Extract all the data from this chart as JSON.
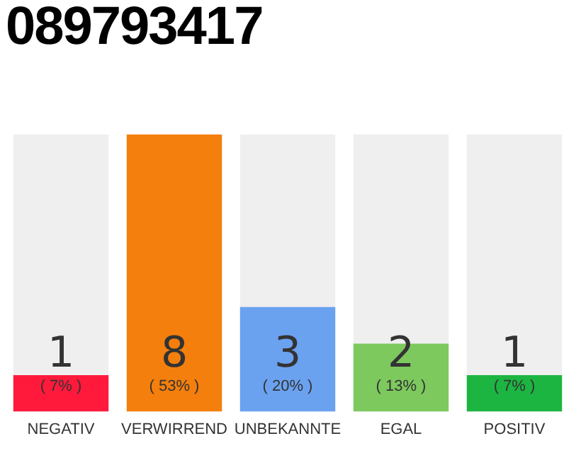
{
  "chart_data": {
    "type": "bar",
    "title": "089793417",
    "categories": [
      "NEGATIV",
      "VERWIRREND",
      "UNBEKANNTE",
      "EGAL",
      "POSITIV"
    ],
    "values": [
      7,
      53,
      20,
      13,
      7
    ],
    "colors": [
      "#ff1a3c",
      "#f57f0c",
      "#6aa2f0",
      "#7dc95e",
      "#1cb541"
    ],
    "value_labels": [
      "( 7% )",
      "( 53% )",
      "( 20% )",
      "( 13% )",
      "( 7% )"
    ],
    "annotations": [
      "1",
      "8",
      "3",
      "2",
      "1"
    ],
    "tick_labels": "x",
    "grid": false,
    "legend": false
  }
}
